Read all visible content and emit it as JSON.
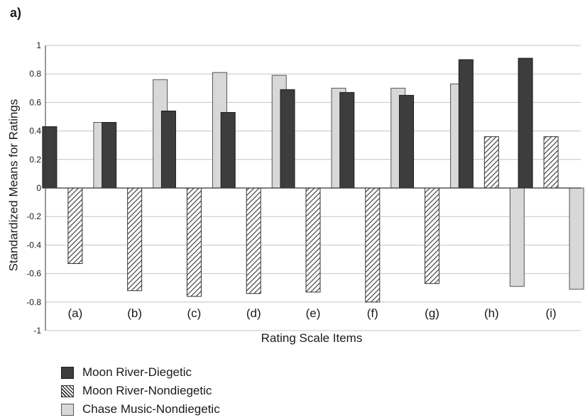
{
  "panel_label": "a)",
  "chart_data": {
    "type": "bar",
    "categories": [
      "(a)",
      "(b)",
      "(c)",
      "(d)",
      "(e)",
      "(f)",
      "(g)",
      "(h)",
      "(i)"
    ],
    "series": [
      {
        "name": "Moon River-Diegetic",
        "values": [
          0.43,
          0.46,
          0.54,
          0.53,
          0.69,
          0.67,
          0.65,
          0.9,
          0.91
        ],
        "color": "#3d3d3d",
        "pattern": "solid-dark"
      },
      {
        "name": "Moon River-Nondiegetic",
        "values": [
          -0.53,
          -0.72,
          -0.76,
          -0.74,
          -0.73,
          -0.8,
          -0.67,
          0.36,
          0.36
        ],
        "color": "#333333",
        "pattern": "diagonal-hatch"
      },
      {
        "name": "Chase Music-Nondiegetic",
        "values": [
          0.46,
          0.76,
          0.81,
          0.79,
          0.7,
          0.7,
          0.73,
          -0.69,
          -0.71
        ],
        "color": "#d8d8d8",
        "pattern": "solid-light"
      }
    ],
    "xlabel": "Rating Scale Items",
    "ylabel": "Standardized Means for Ratings",
    "ylim": [
      -1,
      1
    ],
    "yticks": [
      "1",
      "0.8",
      "0.6",
      "0.4",
      "0.2",
      "0",
      "-0.2",
      "-0.4",
      "-0.6",
      "-0.8",
      "-1"
    ],
    "grid": true,
    "legend_position": "bottom-left"
  }
}
